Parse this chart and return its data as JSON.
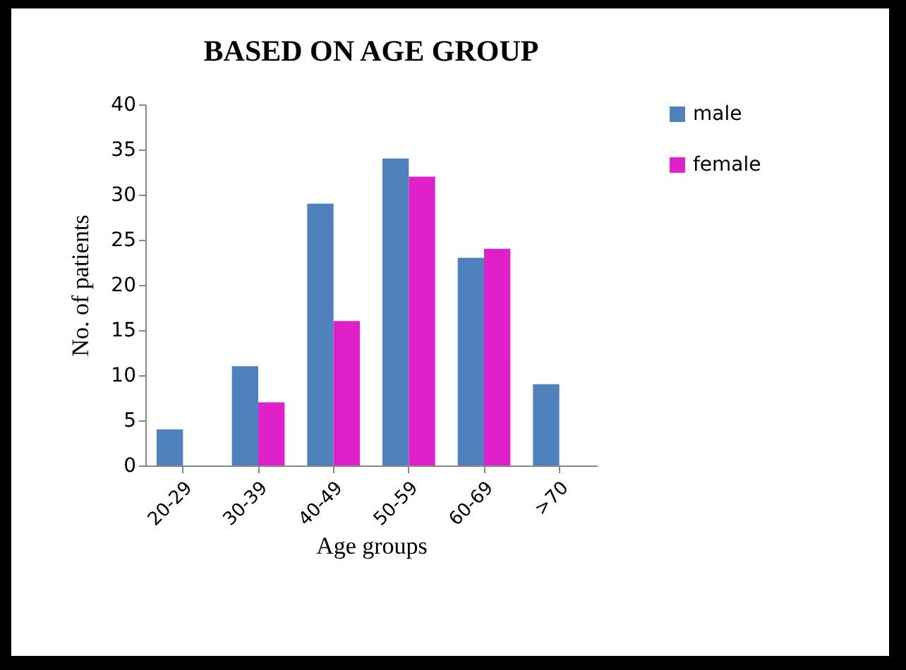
{
  "chart_data": {
    "type": "bar",
    "title": "BASED ON AGE  GROUP",
    "xlabel": "Age groups",
    "ylabel": "No. of patients",
    "categories": [
      "20-29",
      "30-39",
      "40-49",
      "50-59",
      "60-69",
      ">70"
    ],
    "series": [
      {
        "name": "male",
        "color": "#4f81bd",
        "values": [
          4,
          11,
          29,
          34,
          23,
          9
        ]
      },
      {
        "name": "female",
        "color": "#e020c8",
        "values": [
          null,
          7,
          16,
          32,
          24,
          null
        ]
      }
    ],
    "ylim": [
      0,
      40
    ],
    "yticks": [
      0,
      5,
      10,
      15,
      20,
      25,
      30,
      35,
      40
    ],
    "grid": false,
    "legend": "right"
  }
}
